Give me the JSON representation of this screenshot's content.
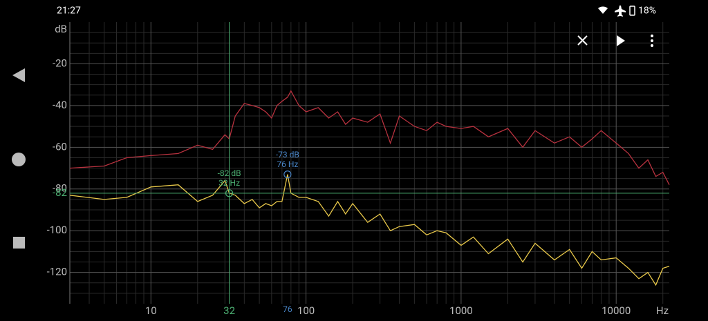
{
  "status_bar": {
    "time": "21:27",
    "battery": "18%"
  },
  "chart_data": {
    "type": "line",
    "x_unit": "Hz",
    "y_unit": "dB",
    "xlog": true,
    "xlim": [
      3,
      22000
    ],
    "ylim": [
      0,
      -135
    ],
    "xticks": [
      10,
      100,
      1000,
      10000
    ],
    "yticks": [
      -20,
      -40,
      -60,
      -80,
      -100,
      -120
    ],
    "xminorticks": [
      4,
      5,
      6,
      7,
      8,
      9,
      20,
      30,
      40,
      50,
      60,
      70,
      80,
      90,
      200,
      300,
      400,
      500,
      600,
      700,
      800,
      900,
      2000,
      3000,
      4000,
      5000,
      6000,
      7000,
      8000,
      9000,
      20000
    ],
    "yminorticks": [
      -5,
      -10,
      -15,
      -25,
      -30,
      -35,
      -45,
      -50,
      -55,
      -65,
      -70,
      -75,
      -85,
      -90,
      -95,
      -105,
      -110,
      -115,
      -125,
      -130
    ],
    "grid": true,
    "x": [
      3,
      5,
      7,
      10,
      15,
      20,
      25,
      30,
      32,
      35,
      40,
      45,
      50,
      55,
      60,
      65,
      70,
      76,
      80,
      90,
      100,
      120,
      140,
      160,
      180,
      200,
      250,
      300,
      350,
      400,
      500,
      600,
      700,
      800,
      1000,
      1200,
      1500,
      2000,
      2500,
      3000,
      4000,
      5000,
      6000,
      7000,
      8000,
      10000,
      12000,
      14000,
      16000,
      18000,
      20000,
      22000
    ],
    "series": [
      {
        "color": "#b8323f",
        "values": [
          -70,
          -69,
          -65,
          -64,
          -63,
          -59,
          -61,
          -54,
          -56,
          -45,
          -39,
          -40,
          -41,
          -43,
          -46,
          -40,
          -38,
          -36,
          -33,
          -40,
          -43,
          -41,
          -46,
          -43,
          -49,
          -46,
          -48,
          -44,
          -58,
          -45,
          -50,
          -52,
          -48,
          -50,
          -51,
          -50,
          -55,
          -51,
          -60,
          -52,
          -58,
          -55,
          -60,
          -56,
          -52,
          -58,
          -63,
          -70,
          -66,
          -74,
          -72,
          -78
        ]
      },
      {
        "color": "#e8c84a",
        "values": [
          -83,
          -85,
          -84,
          -79,
          -78,
          -86,
          -83,
          -76,
          -82,
          -83,
          -87,
          -85,
          -89,
          -87,
          -88,
          -86,
          -86,
          -73,
          -82,
          -84,
          -84,
          -86,
          -93,
          -86,
          -92,
          -87,
          -96,
          -92,
          -100,
          -98,
          -97,
          -102,
          -100,
          -101,
          -107,
          -103,
          -111,
          -104,
          -115,
          -106,
          -114,
          -109,
          -118,
          -110,
          -114,
          -113,
          -118,
          -123,
          -120,
          -126,
          -118,
          -117
        ]
      }
    ],
    "cursors": [
      {
        "x": 32,
        "y": -82,
        "color": "#4caf72",
        "label_db": "-82 dB",
        "label_hz": "32 Hz"
      },
      {
        "x": 76,
        "y": -73,
        "color": "#4a86c8",
        "label_db": "-73 dB",
        "label_hz": "76 Hz"
      }
    ]
  }
}
